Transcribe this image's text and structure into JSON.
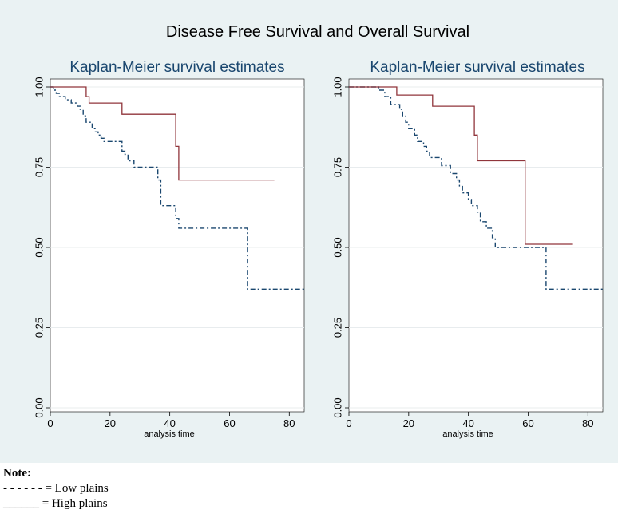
{
  "figure": {
    "title": "Disease Free Survival and Overall Survival",
    "panel_background": "#eaf2f3",
    "plot_background": "#ffffff",
    "gridline_color": "#e8ecee",
    "low_color": "#1a476f",
    "high_color": "#90353b"
  },
  "chart_data": [
    {
      "type": "line",
      "title": "Kaplan-Meier survival estimates",
      "xlabel": "analysis time",
      "ylabel": "",
      "xlim": [
        0,
        85
      ],
      "ylim": [
        0,
        1
      ],
      "xticks": [
        "0",
        "20",
        "40",
        "60",
        "80"
      ],
      "yticks": [
        "0.00",
        "0.25",
        "0.50",
        "0.75",
        "1.00"
      ],
      "grid": true,
      "step": true,
      "series": [
        {
          "style": "dashed",
          "x": [
            0,
            1,
            2,
            3,
            5,
            7,
            9,
            10,
            11,
            12,
            14,
            15,
            16,
            17,
            18,
            21,
            24,
            25,
            26,
            28,
            33,
            36,
            37,
            38,
            42,
            43,
            66,
            85
          ],
          "y": [
            1.0,
            0.99,
            0.98,
            0.97,
            0.96,
            0.95,
            0.94,
            0.93,
            0.91,
            0.89,
            0.87,
            0.86,
            0.85,
            0.84,
            0.83,
            0.83,
            0.8,
            0.79,
            0.77,
            0.75,
            0.75,
            0.71,
            0.63,
            0.63,
            0.59,
            0.56,
            0.37,
            0.37
          ]
        },
        {
          "style": "solid",
          "x": [
            0,
            12,
            13,
            24,
            42,
            43,
            75
          ],
          "y": [
            1.0,
            0.97,
            0.95,
            0.915,
            0.815,
            0.71,
            0.71
          ]
        }
      ]
    },
    {
      "type": "line",
      "title": "Kaplan-Meier survival estimates",
      "xlabel": "analysis time",
      "ylabel": "",
      "xlim": [
        0,
        85
      ],
      "ylim": [
        0,
        1
      ],
      "xticks": [
        "0",
        "20",
        "40",
        "60",
        "80"
      ],
      "yticks": [
        "0.00",
        "0.25",
        "0.50",
        "0.75",
        "1.00"
      ],
      "grid": true,
      "step": true,
      "series": [
        {
          "style": "dashed",
          "x": [
            0,
            10,
            12,
            14,
            17,
            18,
            19,
            20,
            22,
            23,
            25,
            26,
            27,
            28,
            31,
            34,
            36,
            37,
            38,
            40,
            41,
            43,
            44,
            46,
            48,
            49,
            50,
            60,
            66,
            85
          ],
          "y": [
            1.0,
            0.99,
            0.97,
            0.945,
            0.93,
            0.91,
            0.89,
            0.87,
            0.85,
            0.83,
            0.815,
            0.8,
            0.78,
            0.78,
            0.755,
            0.73,
            0.71,
            0.69,
            0.67,
            0.65,
            0.63,
            0.61,
            0.58,
            0.56,
            0.53,
            0.5,
            0.5,
            0.5,
            0.37,
            0.37
          ]
        },
        {
          "style": "solid",
          "x": [
            0,
            16,
            28,
            42,
            43,
            59,
            75
          ],
          "y": [
            1.0,
            0.975,
            0.94,
            0.85,
            0.77,
            0.51,
            0.51
          ]
        }
      ]
    }
  ],
  "note": {
    "title": "Note:",
    "lines": [
      "- - - - - - = Low plains",
      "______ = High plains"
    ]
  }
}
